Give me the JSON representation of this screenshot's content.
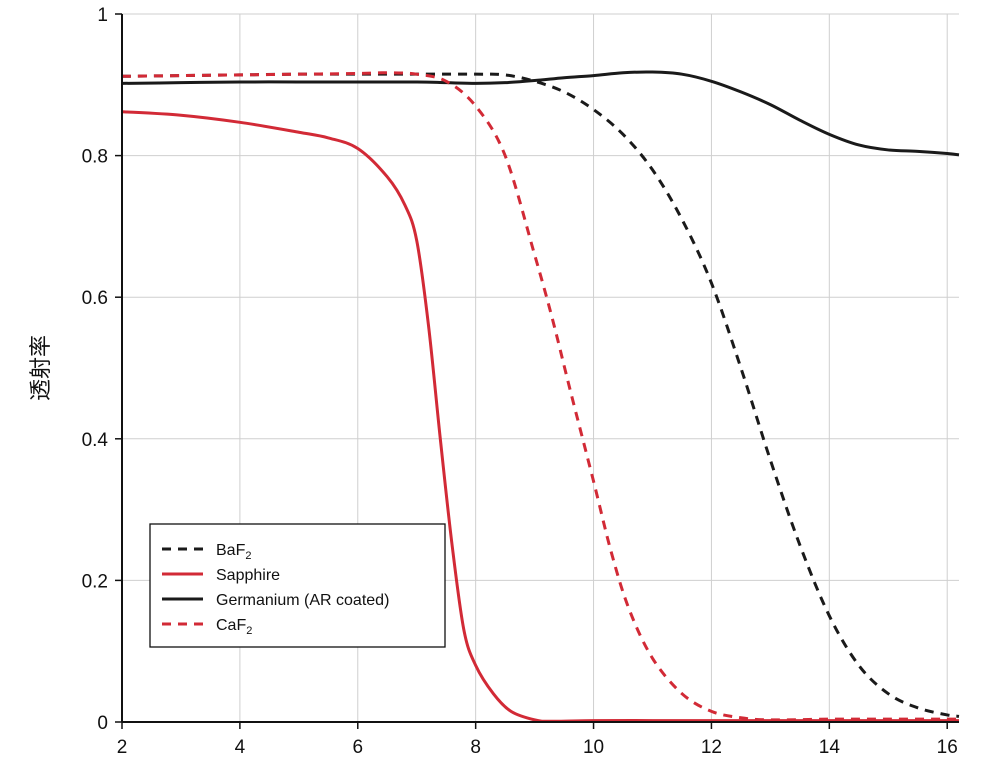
{
  "chart_data": {
    "type": "line",
    "title": "",
    "xlabel": "",
    "ylabel": "透射率",
    "xlim": [
      2,
      16.2
    ],
    "ylim": [
      0,
      1
    ],
    "xticks": [
      2,
      4,
      6,
      8,
      10,
      12,
      14,
      16
    ],
    "yticks": [
      0,
      0.2,
      0.4,
      0.6,
      0.8,
      1
    ],
    "ytick_labels": [
      "0",
      "0.2",
      "0.4",
      "0.6",
      "0.8",
      "1"
    ],
    "grid": true,
    "legend_position": "lower-left",
    "series": [
      {
        "name": "BaF",
        "name_subscript": "2",
        "color": "#1a1a1a",
        "dash": "dashed",
        "x": [
          2,
          3,
          4,
          5,
          6,
          7,
          8,
          8.5,
          9,
          9.5,
          10,
          10.5,
          11,
          11.5,
          12,
          12.5,
          13,
          13.5,
          14,
          14.5,
          15,
          15.5,
          16,
          16.2
        ],
        "y": [
          0.912,
          0.913,
          0.914,
          0.915,
          0.915,
          0.915,
          0.915,
          0.914,
          0.905,
          0.89,
          0.865,
          0.83,
          0.78,
          0.71,
          0.62,
          0.5,
          0.37,
          0.25,
          0.15,
          0.08,
          0.04,
          0.02,
          0.01,
          0.008
        ]
      },
      {
        "name": "Sapphire",
        "name_subscript": "",
        "color": "#d22a36",
        "dash": "solid",
        "x": [
          2,
          3,
          4,
          5,
          5.5,
          6,
          6.5,
          6.8,
          7,
          7.2,
          7.4,
          7.6,
          7.8,
          8,
          8.3,
          8.6,
          9,
          9.3,
          10,
          11,
          12,
          13,
          14,
          15,
          16,
          16.2
        ],
        "y": [
          0.862,
          0.857,
          0.847,
          0.833,
          0.825,
          0.81,
          0.77,
          0.73,
          0.68,
          0.56,
          0.4,
          0.25,
          0.13,
          0.08,
          0.04,
          0.015,
          0.003,
          0.001,
          0.002,
          0.002,
          0.002,
          0.002,
          0.002,
          0.002,
          0.002,
          0.002
        ]
      },
      {
        "name": "Germanium (AR coated)",
        "name_subscript": "",
        "color": "#1a1a1a",
        "dash": "solid",
        "x": [
          2,
          3,
          4,
          5,
          6,
          7,
          7.5,
          8,
          8.5,
          9,
          9.5,
          10,
          10.5,
          11,
          11.5,
          12,
          12.5,
          13,
          13.5,
          14,
          14.5,
          15,
          15.5,
          16,
          16.2
        ],
        "y": [
          0.902,
          0.903,
          0.904,
          0.904,
          0.904,
          0.904,
          0.903,
          0.902,
          0.903,
          0.906,
          0.91,
          0.913,
          0.917,
          0.918,
          0.915,
          0.905,
          0.89,
          0.872,
          0.85,
          0.83,
          0.815,
          0.808,
          0.806,
          0.803,
          0.801
        ]
      },
      {
        "name": "CaF",
        "name_subscript": "2",
        "color": "#d22a36",
        "dash": "dashed",
        "x": [
          2,
          3,
          4,
          5,
          6,
          6.5,
          7,
          7.5,
          8,
          8.5,
          9,
          9.3,
          9.6,
          10,
          10.3,
          10.6,
          11,
          11.5,
          12,
          12.5,
          13,
          14,
          15,
          16,
          16.2
        ],
        "y": [
          0.912,
          0.913,
          0.914,
          0.915,
          0.916,
          0.917,
          0.915,
          0.905,
          0.87,
          0.8,
          0.66,
          0.57,
          0.47,
          0.34,
          0.24,
          0.16,
          0.09,
          0.04,
          0.015,
          0.006,
          0.003,
          0.004,
          0.004,
          0.004,
          0.004
        ]
      }
    ]
  }
}
